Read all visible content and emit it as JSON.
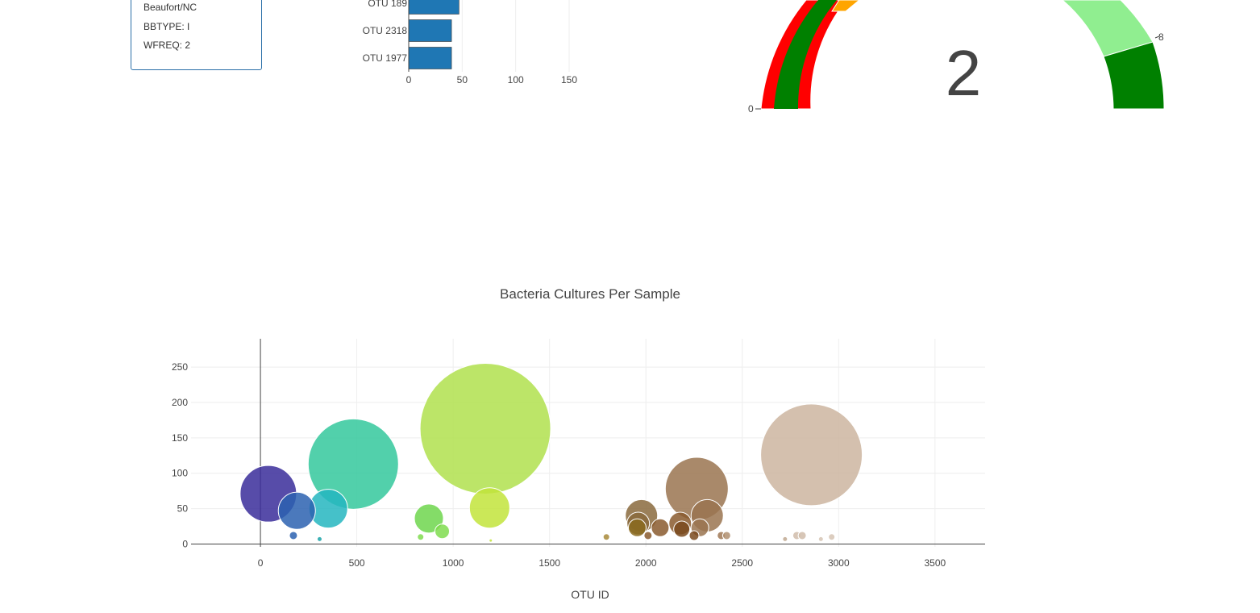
{
  "metadata": {
    "lines": [
      "Beaufort/NC",
      "BBTYPE: I",
      "WFREQ: 2"
    ]
  },
  "bar_chart": {
    "type": "bar",
    "orientation": "horizontal",
    "categories": [
      "OTU 189",
      "OTU 2318",
      "OTU 1977"
    ],
    "values": [
      47,
      40,
      40
    ],
    "xticks": [
      0,
      50,
      100,
      150
    ],
    "xlim": [
      0,
      160
    ],
    "color": "#1f77b4"
  },
  "gauge": {
    "value_text": "2",
    "tick_labels": [
      {
        "text": "0",
        "angle": 180
      },
      {
        "text": "8",
        "angle": 22.5
      }
    ],
    "colors": {
      "red": "#ff0000",
      "green": "#008000",
      "orange": "#ffa500",
      "light_green": "#90ee90"
    }
  },
  "chart_data": {
    "type": "scatter",
    "title": "Bacteria Cultures Per Sample",
    "xlabel": "OTU ID",
    "ylabel": "",
    "xlim": [
      -360,
      3760
    ],
    "ylim": [
      -4,
      290
    ],
    "xticks": [
      0,
      500,
      1000,
      1500,
      2000,
      2500,
      3000,
      3500
    ],
    "yticks": [
      0,
      50,
      100,
      150,
      200,
      250
    ],
    "grid": true,
    "points": [
      {
        "x": 41,
        "y": 71,
        "r": 35,
        "color": "#3a2d9a"
      },
      {
        "x": 189,
        "y": 47,
        "r": 23,
        "color": "#2b62b0"
      },
      {
        "x": 171,
        "y": 12,
        "r": 5,
        "color": "#2b62b0"
      },
      {
        "x": 307,
        "y": 7,
        "r": 3,
        "color": "#1aa3a8"
      },
      {
        "x": 352,
        "y": 50,
        "r": 24,
        "color": "#25b6c0"
      },
      {
        "x": 482,
        "y": 113,
        "r": 56,
        "color": "#34c89c"
      },
      {
        "x": 874,
        "y": 36,
        "r": 18,
        "color": "#6fd64d"
      },
      {
        "x": 943,
        "y": 18,
        "r": 9,
        "color": "#7fdc4f"
      },
      {
        "x": 831,
        "y": 10,
        "r": 4,
        "color": "#7fdc4f"
      },
      {
        "x": 1167,
        "y": 163,
        "r": 81,
        "color": "#b0e04d"
      },
      {
        "x": 1189,
        "y": 51,
        "r": 25,
        "color": "#c2e43b"
      },
      {
        "x": 1195,
        "y": 5,
        "r": 2,
        "color": "#c2e43b"
      },
      {
        "x": 1795,
        "y": 10,
        "r": 4,
        "color": "#a8893a"
      },
      {
        "x": 1977,
        "y": 40,
        "r": 20,
        "color": "#8a6a3d"
      },
      {
        "x": 1960,
        "y": 29,
        "r": 14,
        "color": "#8a6a3d"
      },
      {
        "x": 1955,
        "y": 23,
        "r": 11,
        "color": "#8a6a1e"
      },
      {
        "x": 2011,
        "y": 12,
        "r": 5,
        "color": "#8a5a2e"
      },
      {
        "x": 2074,
        "y": 23,
        "r": 11,
        "color": "#8a5a2e"
      },
      {
        "x": 2178,
        "y": 29,
        "r": 14,
        "color": "#8a5a2e"
      },
      {
        "x": 2186,
        "y": 21,
        "r": 10,
        "color": "#7a4a1e"
      },
      {
        "x": 2264,
        "y": 78,
        "r": 39,
        "color": "#9a7450"
      },
      {
        "x": 2318,
        "y": 40,
        "r": 20,
        "color": "#9a7450"
      },
      {
        "x": 2280,
        "y": 23,
        "r": 11,
        "color": "#9a7450"
      },
      {
        "x": 2250,
        "y": 12,
        "r": 6,
        "color": "#7a4a1e"
      },
      {
        "x": 2391,
        "y": 12,
        "r": 5,
        "color": "#a07855"
      },
      {
        "x": 2419,
        "y": 12,
        "r": 5,
        "color": "#b08f70"
      },
      {
        "x": 2859,
        "y": 126,
        "r": 63,
        "color": "#cdb5a0"
      },
      {
        "x": 2722,
        "y": 7,
        "r": 3,
        "color": "#c0a890"
      },
      {
        "x": 2783,
        "y": 12,
        "r": 5,
        "color": "#d0bcaa"
      },
      {
        "x": 2811,
        "y": 12,
        "r": 5,
        "color": "#d0bcaa"
      },
      {
        "x": 2908,
        "y": 7,
        "r": 3,
        "color": "#d6c4b4"
      },
      {
        "x": 2964,
        "y": 10,
        "r": 4,
        "color": "#d6c4b4"
      }
    ]
  }
}
